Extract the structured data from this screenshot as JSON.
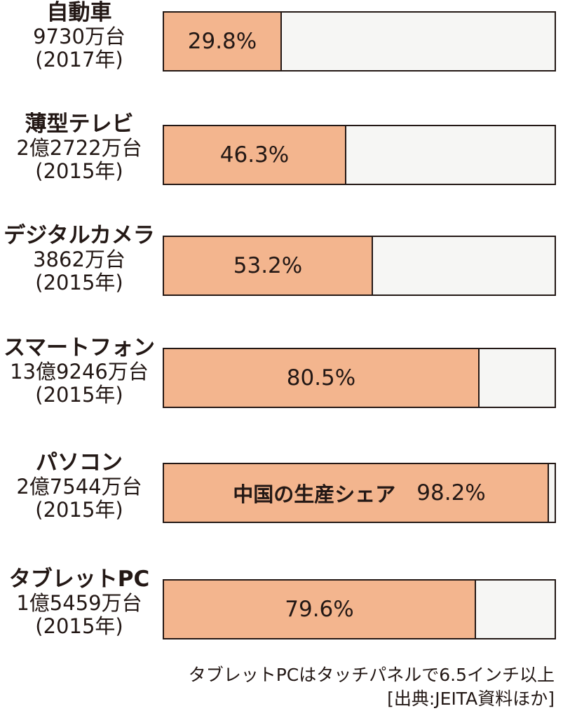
{
  "chart_data": {
    "type": "bar",
    "categories": [
      "自動車",
      "薄型テレビ",
      "デジタルカメラ",
      "スマートフォン",
      "パソコン",
      "タブレットPC"
    ],
    "series": [
      {
        "name": "中国の生産シェア",
        "values": [
          29.8,
          46.3,
          53.2,
          80.5,
          98.2,
          79.6
        ]
      }
    ],
    "value_labels": [
      "29.8%",
      "46.3%",
      "53.2%",
      "80.5%",
      "98.2%",
      "79.6%"
    ],
    "volumes": [
      "9730万台",
      "2億2722万台",
      "3862万台",
      "13億9246万台",
      "2億7544万台",
      "1億5459万台"
    ],
    "years": [
      "(2017年)",
      "(2015年)",
      "(2015年)",
      "(2015年)",
      "(2015年)",
      "(2015年)"
    ],
    "series_label": "中国の生産シェア",
    "xlim": [
      0,
      100
    ],
    "orientation": "horizontal",
    "legend": "none",
    "grid": false,
    "notes": [
      "タブレットPCはタッチパネルで6.5インチ以上",
      "[出典:JEITA資料ほか]"
    ]
  },
  "colors": {
    "share": "#f3b58e",
    "rest": "#f6f6f4",
    "outline": "#231815"
  }
}
